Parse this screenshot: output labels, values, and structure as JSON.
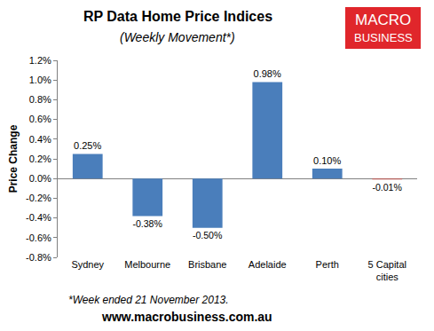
{
  "chart_data": {
    "type": "bar",
    "title": "RP Data Home Price Indices",
    "subtitle": "(Weekly Movement*)",
    "y_label": "Price Change",
    "categories": [
      "Sydney",
      "Melbourne",
      "Brisbane",
      "Adelaide",
      "Perth",
      "5 Capital cities"
    ],
    "values": [
      0.25,
      -0.38,
      -0.5,
      0.98,
      0.1,
      -0.01
    ],
    "value_labels": [
      "0.25%",
      "-0.38%",
      "-0.50%",
      "0.98%",
      "0.10%",
      "-0.01%"
    ],
    "colors": [
      "#4a7ebb",
      "#4a7ebb",
      "#4a7ebb",
      "#4a7ebb",
      "#4a7ebb",
      "#c0504d"
    ],
    "data_labels": true,
    "grid": false,
    "ylim": [
      -0.8,
      1.2
    ],
    "yticks": [
      {
        "value": -0.8,
        "label": "-0.8%"
      },
      {
        "value": -0.6,
        "label": "-0.6%"
      },
      {
        "value": -0.4,
        "label": "-0.4%"
      },
      {
        "value": -0.2,
        "label": "-0.2%"
      },
      {
        "value": 0,
        "label": "0.0%"
      },
      {
        "value": 0.2,
        "label": "0.2%"
      },
      {
        "value": 0.4,
        "label": "0.4%"
      },
      {
        "value": 0.6,
        "label": "0.6%"
      },
      {
        "value": 0.8,
        "label": "0.8%"
      },
      {
        "value": 1.0,
        "label": "1.0%"
      },
      {
        "value": 1.2,
        "label": "1.2%"
      }
    ],
    "annotations": [
      "*Week ended 21 November 2013.",
      "www.macrobusiness.com.au",
      "MACRO",
      "BUSINESS"
    ]
  }
}
